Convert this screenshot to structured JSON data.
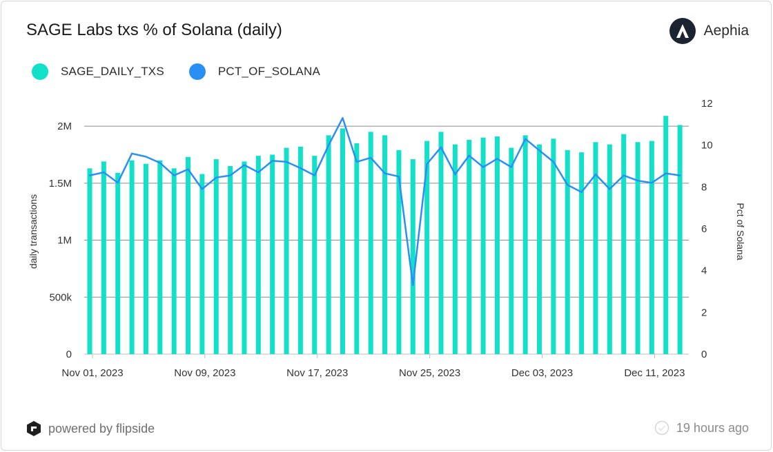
{
  "header": {
    "title": "SAGE Labs txs % of Solana (daily)",
    "brand_name": "Aephia",
    "brand_icon": "aephia-logo-icon"
  },
  "colors": {
    "bar": "#12e0c8",
    "line": "#2a8ff5",
    "grid": "#8a8a8a",
    "text": "#333333"
  },
  "footer": {
    "powered_by": "powered by flipside",
    "powered_icon": "flipside-logo-icon",
    "updated": "19 hours ago",
    "updated_icon": "check-circle-icon"
  },
  "chart_data": {
    "type": "bar",
    "title": "SAGE Labs txs % of Solana (daily)",
    "x_tick_labels": [
      "Nov 01, 2023",
      "Nov 09, 2023",
      "Nov 17, 2023",
      "Nov 25, 2023",
      "Dec 03, 2023",
      "Dec 11, 2023"
    ],
    "categories": [
      "Nov 01",
      "Nov 02",
      "Nov 03",
      "Nov 04",
      "Nov 05",
      "Nov 06",
      "Nov 07",
      "Nov 08",
      "Nov 09",
      "Nov 10",
      "Nov 11",
      "Nov 12",
      "Nov 13",
      "Nov 14",
      "Nov 15",
      "Nov 16",
      "Nov 17",
      "Nov 18",
      "Nov 19",
      "Nov 20",
      "Nov 21",
      "Nov 22",
      "Nov 23",
      "Nov 24",
      "Nov 25",
      "Nov 26",
      "Nov 27",
      "Nov 28",
      "Nov 29",
      "Nov 30",
      "Dec 01",
      "Dec 02",
      "Dec 03",
      "Dec 04",
      "Dec 05",
      "Dec 06",
      "Dec 07",
      "Dec 08",
      "Dec 09",
      "Dec 10",
      "Dec 11",
      "Dec 12",
      "Dec 13"
    ],
    "series": [
      {
        "name": "SAGE_DAILY_TXS",
        "axis": "left",
        "type": "bar",
        "values": [
          1630000,
          1690000,
          1590000,
          1700000,
          1670000,
          1700000,
          1630000,
          1730000,
          1580000,
          1710000,
          1650000,
          1690000,
          1740000,
          1750000,
          1810000,
          1820000,
          1740000,
          1920000,
          1980000,
          1850000,
          1950000,
          1920000,
          1790000,
          1710000,
          1870000,
          1950000,
          1840000,
          1880000,
          1900000,
          1910000,
          1810000,
          1920000,
          1840000,
          1890000,
          1790000,
          1770000,
          1860000,
          1840000,
          1930000,
          1860000,
          1870000,
          2090000,
          2010000
        ]
      },
      {
        "name": "PCT_OF_SOLANA",
        "axis": "right",
        "type": "line",
        "values": [
          8.55,
          8.7,
          8.2,
          9.6,
          9.45,
          9.15,
          8.55,
          8.85,
          7.9,
          8.45,
          8.55,
          9.05,
          8.7,
          9.25,
          9.2,
          8.9,
          8.55,
          10.0,
          11.3,
          9.2,
          9.4,
          8.65,
          8.5,
          3.3,
          9.1,
          9.9,
          8.6,
          9.5,
          8.95,
          9.35,
          8.95,
          10.3,
          9.75,
          9.2,
          8.1,
          7.75,
          8.6,
          7.9,
          8.55,
          8.3,
          8.2,
          8.65,
          8.55
        ]
      }
    ],
    "ylabel": "daily transactions",
    "ylim": [
      0,
      2200000
    ],
    "y_ticks": [
      0,
      500000,
      1000000,
      1500000,
      2000000
    ],
    "y_tick_labels": [
      "0",
      "500k",
      "1M",
      "1.5M",
      "2M"
    ],
    "y2label": "Pct of Solana",
    "y2lim": [
      0,
      12
    ],
    "y2_ticks": [
      0,
      2,
      4,
      6,
      8,
      10,
      12
    ],
    "y2_tick_labels": [
      "0",
      "2",
      "4",
      "6",
      "8",
      "10",
      "12"
    ],
    "grid": true,
    "legend_position": "top-left"
  }
}
